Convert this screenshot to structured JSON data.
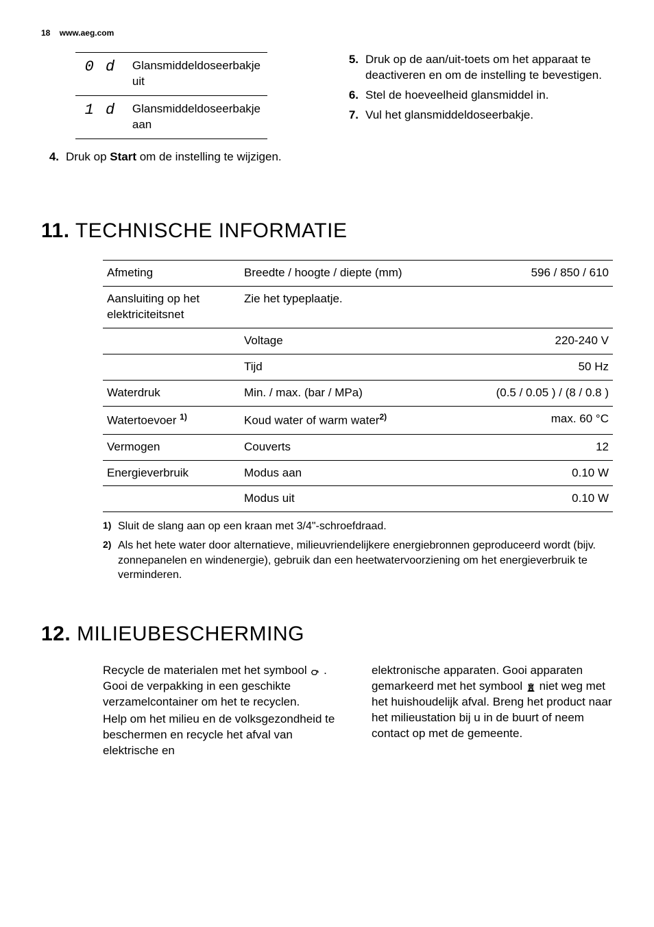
{
  "header": {
    "page_number": "18",
    "url": "www.aeg.com"
  },
  "symbol_table": {
    "rows": [
      {
        "symbol": "0 d",
        "text": "Glansmiddeldoseerbakje uit"
      },
      {
        "symbol": "1 d",
        "text": "Glansmiddeldoseerbakje aan"
      }
    ]
  },
  "left_list": {
    "items": [
      {
        "num": "4.",
        "prefix": "Druk op ",
        "bold": "Start",
        "suffix": " om de instelling te wijzigen."
      }
    ]
  },
  "right_list": {
    "items": [
      {
        "num": "5.",
        "text": "Druk op de aan/uit-toets om het apparaat te deactiveren en om de instelling te bevestigen."
      },
      {
        "num": "6.",
        "text": "Stel de hoeveelheid glansmiddel in."
      },
      {
        "num": "7.",
        "text": "Vul het glansmiddeldoseerbakje."
      }
    ]
  },
  "section11": {
    "num": "11.",
    "title": "TECHNISCHE INFORMATIE",
    "rows": [
      {
        "c1": "Afmeting",
        "c2": "Breedte / hoogte / diepte (mm)",
        "c3": "596 / 850 / 610"
      },
      {
        "c1": "Aansluiting op het elektriciteitsnet",
        "c2": "Zie het typeplaatje.",
        "c3": ""
      },
      {
        "c1": "",
        "c2": "Voltage",
        "c3": "220-240 V"
      },
      {
        "c1": "",
        "c2": "Tijd",
        "c3": "50 Hz"
      },
      {
        "c1": "Waterdruk",
        "c2": "Min. / max. (bar / MPa)",
        "c3": "(0.5 / 0.05 ) / (8 / 0.8 )"
      },
      {
        "c1": "Watertoevoer ",
        "c1_sup": "1)",
        "c2": "Koud water of warm water",
        "c2_sup": "2)",
        "c3": "max. 60 °C"
      },
      {
        "c1": "Vermogen",
        "c2": "Couverts",
        "c3": "12"
      },
      {
        "c1": "Energieverbruik",
        "c2": "Modus aan",
        "c3": "0.10 W"
      },
      {
        "c1": "",
        "c2": "Modus uit",
        "c3": "0.10 W"
      }
    ],
    "footnotes": [
      {
        "num": "1)",
        "text": "Sluit de slang aan op een kraan met 3/4\"-schroefdraad."
      },
      {
        "num": "2)",
        "text": "Als het hete water door alternatieve, milieuvriendelijkere energiebronnen geproduceerd wordt (bijv. zonnepanelen en windenergie), gebruik dan een heetwatervoorziening om het energieverbruik te verminderen."
      }
    ]
  },
  "section12": {
    "num": "12.",
    "title": "MILIEUBESCHERMING",
    "left": {
      "p1a": "Recycle de materialen met het symbool ",
      "p1b": " . Gooi de verpakking in een geschikte verzamelcontainer om het te recyclen.",
      "p2": "Help om het milieu en de volksgezondheid te beschermen en recycle het afval van elektrische en"
    },
    "right": {
      "p1a": "elektronische apparaten. Gooi apparaten gemarkeerd met het symbool ",
      "p1b": " niet weg met het huishoudelijk afval. Breng het product naar het milieustation bij u in de buurt of neem contact op met de gemeente."
    }
  }
}
